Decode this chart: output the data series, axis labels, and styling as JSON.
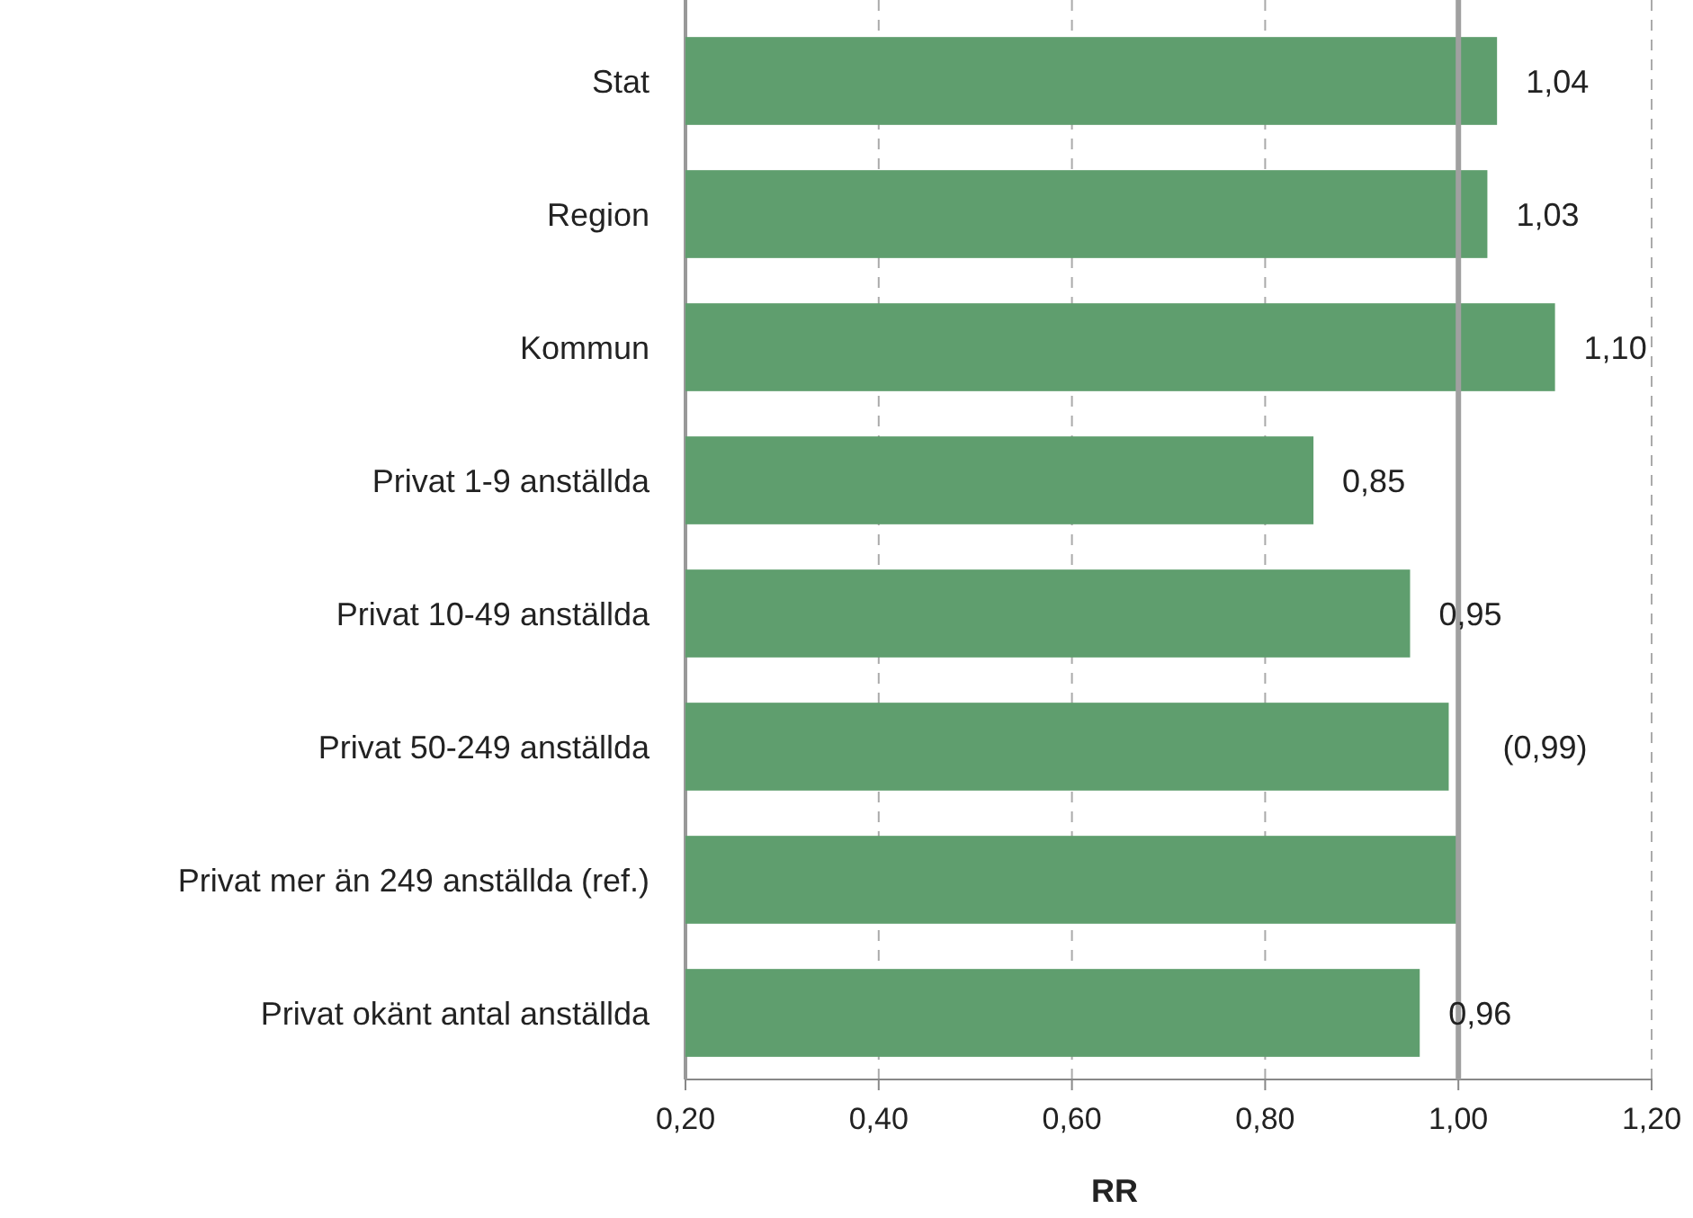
{
  "chart_data": {
    "type": "bar",
    "orientation": "horizontal",
    "xlabel": "RR",
    "categories": [
      "Stat",
      "Region",
      "Kommun",
      "Privat 1-9 anställda",
      "Privat 10-49 anställda",
      "Privat 50-249 anställda",
      "Privat mer än 249 anställda (ref.)",
      "Privat okänt antal anställda"
    ],
    "values": [
      1.04,
      1.03,
      1.1,
      0.85,
      0.95,
      0.99,
      1.0,
      0.96
    ],
    "value_labels": [
      "1,04",
      "1,03",
      "1,10",
      "0,85",
      "0,95",
      "(0,99)",
      null,
      "0,96"
    ],
    "color": "#5f9e6e",
    "xlim": [
      0.2,
      1.2
    ],
    "xticks": [
      {
        "value": 0.2,
        "label": "0,20"
      },
      {
        "value": 0.4,
        "label": "0,40"
      },
      {
        "value": 0.6,
        "label": "0,60"
      },
      {
        "value": 0.8,
        "label": "0,80"
      },
      {
        "value": 1.0,
        "label": "1,00"
      },
      {
        "value": 1.2,
        "label": "1,20"
      }
    ],
    "grid": "x",
    "ref_lines": [
      {
        "axis": "x",
        "value": 1.0,
        "color": "#a0a0a0"
      }
    ]
  }
}
